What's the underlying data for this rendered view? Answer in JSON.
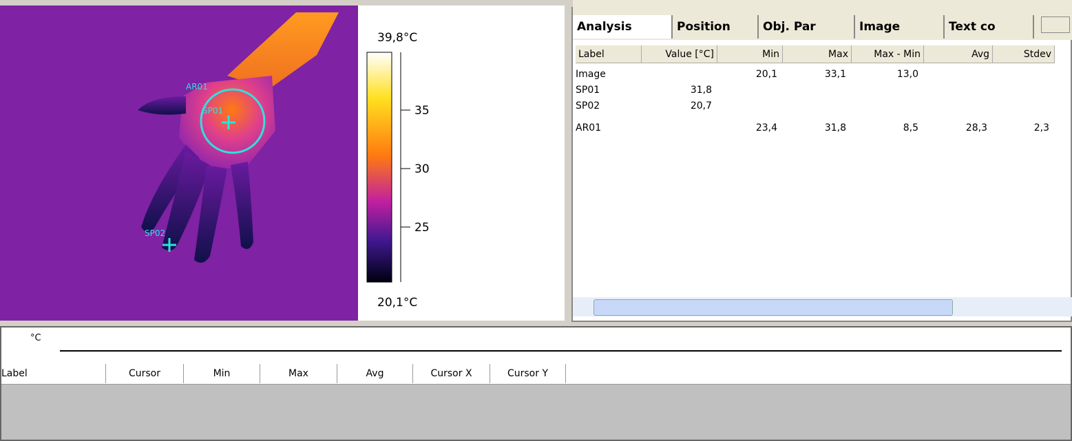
{
  "thermal_image": {
    "labels": [
      "AR01",
      "SP01",
      "SP02"
    ]
  },
  "color_scale": {
    "max_label": "39,8°C",
    "min_label": "20,1°C",
    "ticks": [
      "35",
      "30",
      "25"
    ]
  },
  "tabs": [
    "Analysis",
    "Position",
    "Obj. Par",
    "Image",
    "Text co"
  ],
  "analysis_table": {
    "columns": [
      "Label",
      "Value [°C]",
      "Min",
      "Max",
      "Max - Min",
      "Avg",
      "Stdev"
    ],
    "rows": [
      [
        "Image",
        null,
        "20,1",
        "33,1",
        "13,0",
        null,
        null
      ],
      [
        "SP01",
        "31,8",
        null,
        null,
        null,
        null,
        null
      ],
      [
        "SP02",
        "20,7",
        null,
        null,
        null,
        null,
        null
      ],
      [
        "AR01",
        null,
        "23,4",
        "31,8",
        "8,5",
        "28,3",
        "2,3"
      ]
    ]
  },
  "bottom_panel": {
    "unit": "°C",
    "columns": [
      "Label",
      "Cursor",
      "Min",
      "Max",
      "Avg",
      "Cursor X",
      "Cursor Y"
    ]
  }
}
